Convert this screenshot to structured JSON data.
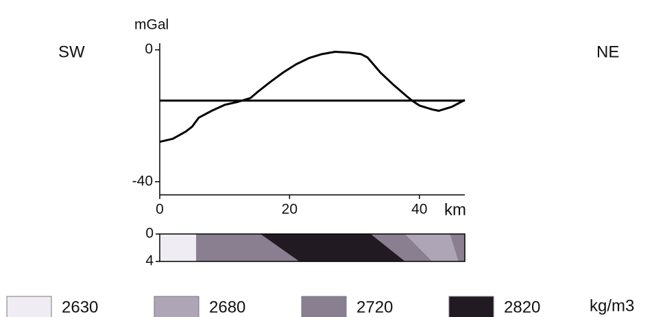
{
  "chart_data": {
    "type": "line",
    "y_label": "mGal",
    "x_label": "km",
    "left_label": "SW",
    "right_label": "NE",
    "x": [
      0,
      2,
      4,
      5,
      6,
      8,
      10,
      12,
      14,
      15,
      17,
      19,
      21,
      23,
      25,
      27,
      29,
      31,
      32,
      34,
      36,
      38,
      39,
      40,
      42,
      43,
      45,
      47
    ],
    "series": [
      {
        "color": "#000000",
        "values": [
          -27.9,
          -27,
          -24.8,
          -23.3,
          -20.6,
          -18.5,
          -16.7,
          -15.8,
          -14.6,
          -12.9,
          -9.8,
          -6.9,
          -4.4,
          -2.5,
          -1.3,
          -0.6,
          -0.8,
          -1.3,
          -2.3,
          -6.9,
          -10.6,
          -14,
          -15.6,
          -16.9,
          -18.1,
          -18.5,
          -17.3,
          -15.2
        ]
      },
      {
        "color": "#000000",
        "values": [
          -15.4,
          -15.4,
          -15.4,
          -15.4,
          -15.4,
          -15.4,
          -15.4,
          -15.4,
          -15.4,
          -15.4,
          -15.4,
          -15.4,
          -15.4,
          -15.4,
          -15.4,
          -15.4,
          -15.4,
          -15.4,
          -15.4,
          -15.4,
          -15.4,
          -15.4,
          -15.4,
          -15.4,
          -15.4,
          -15.4,
          -15.4,
          -15.4
        ]
      }
    ],
    "xlim": [
      0,
      47
    ],
    "xticks": [
      0,
      20,
      40
    ],
    "ylim": [
      -44,
      2
    ],
    "yticks": [
      0,
      -40
    ]
  },
  "section": {
    "ylim": [
      0,
      4
    ],
    "yticks": [
      0,
      4
    ],
    "unit": "kg/m3",
    "densities": [
      {
        "value": 2630,
        "color": "#efedf3",
        "polygons": [
          [
            [
              0,
              0
            ],
            [
              5.6,
              0
            ],
            [
              5.6,
              4
            ],
            [
              0,
              4
            ]
          ]
        ]
      },
      {
        "value": 2680,
        "color": "#aea5b7",
        "polygons": [
          [
            [
              37.8,
              0
            ],
            [
              44.7,
              0
            ],
            [
              46,
              4
            ],
            [
              42,
              4
            ]
          ]
        ]
      },
      {
        "value": 2720,
        "color": "#8a7f91",
        "polygons": [
          [
            [
              5.6,
              0
            ],
            [
              15.5,
              0
            ],
            [
              21.5,
              4
            ],
            [
              5.6,
              4
            ]
          ],
          [
            [
              32.5,
              0
            ],
            [
              37.8,
              0
            ],
            [
              42,
              4
            ],
            [
              37.8,
              4
            ]
          ],
          [
            [
              44.7,
              0
            ],
            [
              47,
              0
            ],
            [
              47,
              4
            ],
            [
              46,
              4
            ]
          ]
        ]
      },
      {
        "value": 2820,
        "color": "#221a23",
        "polygons": [
          [
            [
              15.5,
              0
            ],
            [
              32.5,
              0
            ],
            [
              37.8,
              4
            ],
            [
              21.5,
              4
            ]
          ]
        ]
      }
    ]
  }
}
